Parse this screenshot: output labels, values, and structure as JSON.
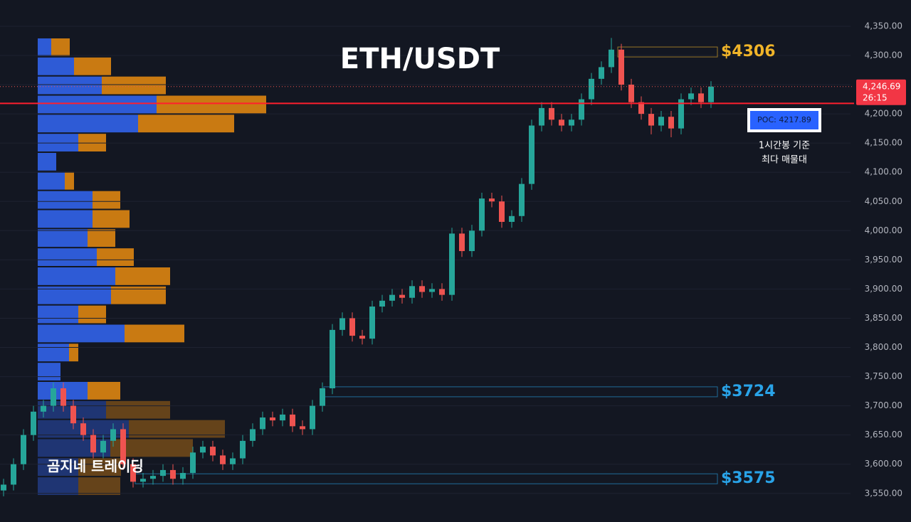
{
  "chart_data": {
    "type": "candlestick",
    "title": "ETH/USDT",
    "ylim": [
      3501,
      4395
    ],
    "yticks": [
      {
        "value": 3550,
        "label": "3,550.00"
      },
      {
        "value": 3600,
        "label": "3,600.00"
      },
      {
        "value": 3650,
        "label": "3,650.00"
      },
      {
        "value": 3700,
        "label": "3,700.00"
      },
      {
        "value": 3750,
        "label": "3,750.00"
      },
      {
        "value": 3800,
        "label": "3,800.00"
      },
      {
        "value": 3850,
        "label": "3,850.00"
      },
      {
        "value": 3900,
        "label": "3,900.00"
      },
      {
        "value": 3950,
        "label": "3,950.00"
      },
      {
        "value": 4000,
        "label": "4,000.00"
      },
      {
        "value": 4050,
        "label": "4,050.00"
      },
      {
        "value": 4100,
        "label": "4,100.00"
      },
      {
        "value": 4150,
        "label": "4,150.00"
      },
      {
        "value": 4200,
        "label": "4,200.00"
      },
      {
        "value": 4250,
        "label": "4,250.00"
      },
      {
        "value": 4300,
        "label": "4,300.00"
      },
      {
        "value": 4350,
        "label": "4,350.00"
      }
    ],
    "up_color": "#26a69a",
    "down_color": "#ef5350",
    "open": [
      3555,
      3565,
      3600,
      3650,
      3690,
      3700,
      3730,
      3700,
      3670,
      3650,
      3620,
      3640,
      3660,
      3600,
      3570,
      3575,
      3580,
      3590,
      3575,
      3585,
      3620,
      3630,
      3615,
      3600,
      3610,
      3640,
      3660,
      3680,
      3675,
      3685,
      3665,
      3660,
      3700,
      3730,
      3830,
      3850,
      3820,
      3815,
      3870,
      3880,
      3890,
      3885,
      3905,
      3895,
      3900,
      3890,
      3995,
      3965,
      4000,
      4055,
      4050,
      4015,
      4025,
      4080,
      4180,
      4210,
      4190,
      4180,
      4190,
      4225,
      4260,
      4280,
      4310,
      4250,
      4220,
      4200,
      4180,
      4195,
      4175,
      4225,
      4235,
      4220
    ],
    "high": [
      3575,
      3610,
      3660,
      3700,
      3710,
      3740,
      3740,
      3710,
      3680,
      3660,
      3650,
      3670,
      3670,
      3610,
      3585,
      3590,
      3600,
      3600,
      3595,
      3630,
      3640,
      3640,
      3625,
      3620,
      3650,
      3670,
      3690,
      3690,
      3695,
      3695,
      3675,
      3710,
      3740,
      3840,
      3860,
      3860,
      3830,
      3880,
      3890,
      3900,
      3900,
      3915,
      3915,
      3910,
      3910,
      4005,
      4005,
      4010,
      4065,
      4065,
      4060,
      4035,
      4090,
      4190,
      4220,
      4220,
      4200,
      4200,
      4235,
      4270,
      4290,
      4330,
      4320,
      4260,
      4230,
      4210,
      4205,
      4205,
      4235,
      4245,
      4245,
      4256
    ],
    "low": [
      3545,
      3555,
      3590,
      3640,
      3680,
      3690,
      3690,
      3660,
      3640,
      3610,
      3610,
      3630,
      3590,
      3560,
      3560,
      3565,
      3570,
      3565,
      3565,
      3575,
      3610,
      3605,
      3590,
      3590,
      3600,
      3630,
      3650,
      3665,
      3665,
      3655,
      3650,
      3650,
      3690,
      3720,
      3820,
      3810,
      3805,
      3805,
      3860,
      3870,
      3875,
      3875,
      3885,
      3885,
      3880,
      3880,
      3955,
      3955,
      3990,
      4040,
      4005,
      4005,
      4015,
      4070,
      4170,
      4180,
      4170,
      4170,
      4180,
      4215,
      4250,
      4270,
      4240,
      4210,
      4190,
      4165,
      4170,
      4160,
      4165,
      4215,
      4210,
      4210
    ],
    "close": [
      3565,
      3600,
      3650,
      3690,
      3700,
      3730,
      3700,
      3670,
      3650,
      3620,
      3640,
      3660,
      3600,
      3570,
      3575,
      3580,
      3590,
      3575,
      3585,
      3620,
      3630,
      3615,
      3600,
      3610,
      3640,
      3660,
      3680,
      3675,
      3685,
      3665,
      3660,
      3700,
      3730,
      3830,
      3850,
      3820,
      3815,
      3870,
      3880,
      3890,
      3885,
      3905,
      3895,
      3900,
      3890,
      3995,
      3965,
      4000,
      4055,
      4050,
      4015,
      4025,
      4080,
      4180,
      4210,
      4190,
      4180,
      4190,
      4225,
      4260,
      4280,
      4310,
      4250,
      4220,
      4200,
      4180,
      4195,
      4175,
      4225,
      4235,
      4220,
      4246.69
    ],
    "volume_profile": {
      "buy_color": "#2e5bd6",
      "sell_color": "#c97a12",
      "buy": [
        19,
        51,
        90,
        167,
        141,
        57,
        26,
        38,
        77,
        77,
        70,
        83,
        109,
        103,
        57,
        122,
        44,
        32,
        70,
        96,
        128,
        102,
        57,
        57
      ],
      "sell": [
        26,
        52,
        90,
        154,
        135,
        39,
        0,
        13,
        39,
        52,
        39,
        52,
        77,
        77,
        39,
        84,
        13,
        0,
        46,
        90,
        135,
        116,
        60,
        59
      ]
    },
    "levels": [
      {
        "value": 4306,
        "label": "$4306",
        "color": "#f0b429"
      },
      {
        "value": 3724,
        "label": "$3724",
        "color": "#29a3e8"
      },
      {
        "value": 3575,
        "label": "$3575",
        "color": "#29a3e8"
      }
    ],
    "poc": {
      "value": 4217.89,
      "label": "POC: 4217.89",
      "note": [
        "1시간봉 기준",
        "최다 매물대"
      ]
    },
    "last_price": {
      "value": 4246.69,
      "label": "4,246.69",
      "countdown": "26:15"
    },
    "watermark": "곰지네 트레이딩"
  }
}
